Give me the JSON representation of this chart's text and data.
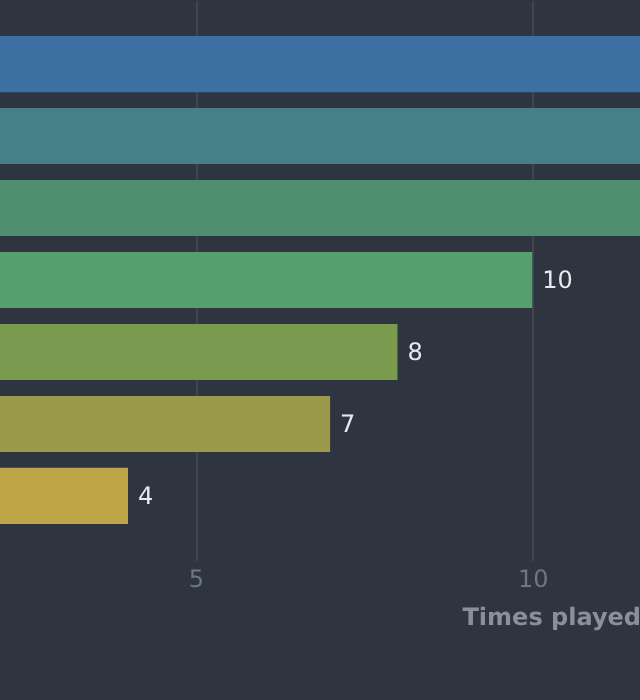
{
  "chart_data": {
    "type": "bar",
    "orientation": "horizontal",
    "xlabel": "Times played",
    "categories": [
      null,
      null,
      null,
      null,
      null,
      null,
      null
    ],
    "values": [
      11.6,
      11.6,
      11.6,
      10,
      8,
      7,
      4
    ],
    "colors": [
      "#3d6fa3",
      "#467f88",
      "#4f8f70",
      "#55a06e",
      "#7a9a50",
      "#9a9a4a",
      "#bfa545"
    ],
    "value_labels": [
      null,
      null,
      null,
      "10",
      "8",
      "7",
      "4"
    ],
    "xlim": [
      2.1,
      11.6
    ],
    "xticks": [
      5,
      10
    ],
    "grid": "x"
  }
}
